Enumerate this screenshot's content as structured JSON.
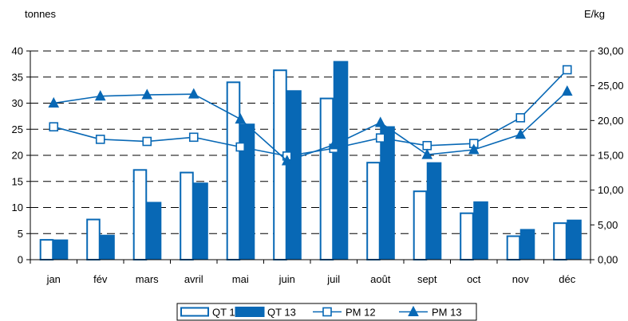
{
  "chart_data": {
    "type": "bar",
    "categories": [
      "jan",
      "fév",
      "mars",
      "avril",
      "mai",
      "juin",
      "juil",
      "août",
      "sept",
      "oct",
      "nov",
      "déc"
    ],
    "ylabel_left": "tonnes",
    "ylabel_right": "E/kg",
    "ylim_left": [
      0,
      40
    ],
    "yticks_left": [
      "0",
      "5",
      "10",
      "15",
      "20",
      "25",
      "30",
      "35",
      "40"
    ],
    "ylim_right": [
      0,
      30
    ],
    "yticks_right": [
      "0,00",
      "5,00",
      "10,00",
      "15,00",
      "20,00",
      "25,00",
      "30,00"
    ],
    "grid": "horizontal dashed",
    "legend_position": "bottom",
    "colors": {
      "primary": "#0868b5",
      "axis": "#000000",
      "grid": "#000000",
      "fill_empty": "#ffffff"
    },
    "series": [
      {
        "name": "QT 12",
        "kind": "bar",
        "style": "hollow",
        "axis": "left",
        "values": [
          3.8,
          7.7,
          17.2,
          16.7,
          34.0,
          36.3,
          30.9,
          18.6,
          13.1,
          8.9,
          4.5,
          7.0
        ]
      },
      {
        "name": "QT 13",
        "kind": "bar",
        "style": "filled",
        "axis": "left",
        "values": [
          3.8,
          4.7,
          11.0,
          14.7,
          26.0,
          32.4,
          38.0,
          25.5,
          18.6,
          11.1,
          5.8,
          7.6
        ]
      },
      {
        "name": "PM 12",
        "kind": "line",
        "marker": "square",
        "axis": "right",
        "values": [
          19.1,
          17.3,
          17.0,
          17.6,
          16.2,
          14.9,
          16.0,
          17.5,
          16.4,
          16.7,
          20.4,
          27.3
        ]
      },
      {
        "name": "PM 13",
        "kind": "line",
        "marker": "triangle",
        "axis": "right",
        "values": [
          22.5,
          23.5,
          23.7,
          23.8,
          20.2,
          14.2,
          16.5,
          19.7,
          15.1,
          15.8,
          18.0,
          24.2
        ]
      }
    ]
  }
}
